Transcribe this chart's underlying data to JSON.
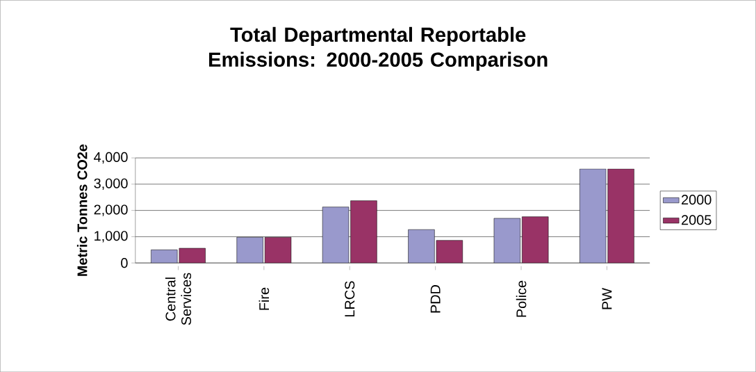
{
  "chart_data": {
    "type": "bar",
    "title": "Total Departmental Reportable Emissions: 2000-2005 Comparison",
    "ylabel": "Metric Tonnes CO2e",
    "categories": [
      "Central Services",
      "Fire",
      "LRCS",
      "PDD",
      "Police",
      "PW"
    ],
    "series": [
      {
        "name": "2000",
        "color": "#9999cc",
        "values": [
          500,
          980,
          2130,
          1270,
          1700,
          3580
        ]
      },
      {
        "name": "2005",
        "color": "#993366",
        "values": [
          560,
          980,
          2370,
          860,
          1760,
          3580
        ]
      }
    ],
    "ylim": [
      0,
      4000
    ],
    "yticks": [
      {
        "value": 0,
        "label": "0"
      },
      {
        "value": 1000,
        "label": "1,000"
      },
      {
        "value": 2000,
        "label": "2,000"
      },
      {
        "value": 3000,
        "label": "3,000"
      },
      {
        "value": 4000,
        "label": "4,000"
      }
    ],
    "grid": "y",
    "legend": "right"
  }
}
